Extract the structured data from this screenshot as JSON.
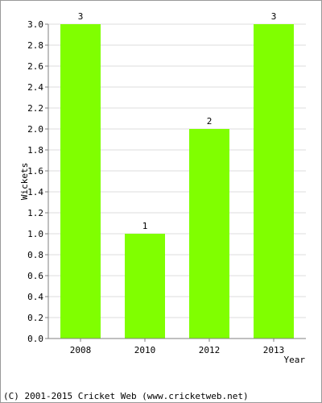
{
  "chart_data": {
    "type": "bar",
    "categories": [
      "2008",
      "2010",
      "2012",
      "2013"
    ],
    "values": [
      3,
      1,
      2,
      3
    ],
    "data_labels": [
      "3",
      "1",
      "2",
      "3"
    ],
    "xlabel": "Year",
    "ylabel": "Wickets",
    "ylim": [
      0,
      3.0
    ],
    "yticks": [
      "0.0",
      "0.2",
      "0.4",
      "0.6",
      "0.8",
      "1.0",
      "1.2",
      "1.4",
      "1.6",
      "1.8",
      "2.0",
      "2.2",
      "2.4",
      "2.6",
      "2.8",
      "3.0"
    ],
    "grid": true,
    "bar_color": "#80ff00",
    "grid_color": "#dddddd",
    "axis_color": "#808080"
  },
  "footer": {
    "text": "(C) 2001-2015 Cricket Web (www.cricketweb.net)"
  }
}
